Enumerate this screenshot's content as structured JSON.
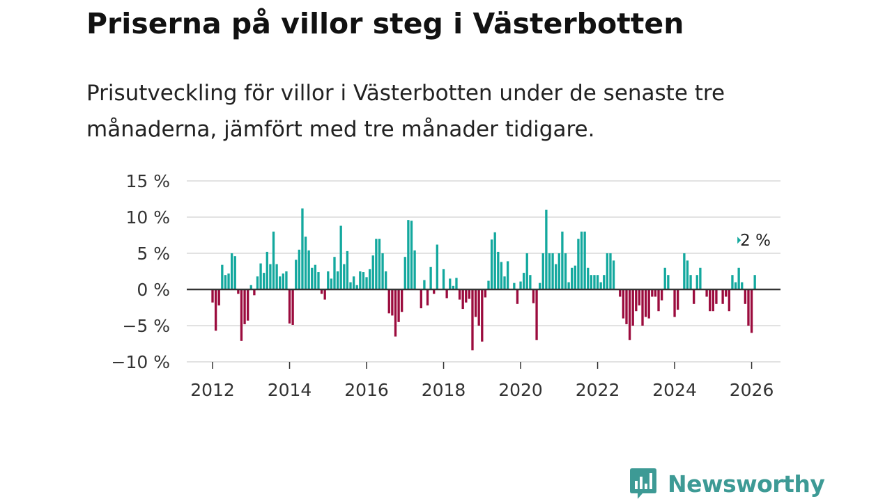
{
  "header": {
    "title": "Priserna på villor steg i Västerbotten",
    "subtitle": "Prisutveckling för villor i Västerbotten under de senaste tre månaderna, jämfört med tre månader tidigare."
  },
  "logo": {
    "text": "Newsworthy",
    "icon": "bar-chart-speech-bubble-icon",
    "color": "#3d9a95"
  },
  "chart_data": {
    "type": "bar",
    "title": "Priserna på villor steg i Västerbotten",
    "xlabel": "",
    "ylabel": "",
    "ylim": [
      -10,
      15
    ],
    "yticks": [
      15,
      10,
      5,
      0,
      -5,
      -10
    ],
    "ytick_labels": [
      "15 %",
      "10 %",
      "5 %",
      "0 %",
      "−5 %",
      "−10 %"
    ],
    "xlim": [
      2011.33,
      2026.75
    ],
    "xticks": [
      2012,
      2014,
      2016,
      2018,
      2020,
      2022,
      2024,
      2026
    ],
    "xtick_labels": [
      "2012",
      "2014",
      "2016",
      "2018",
      "2020",
      "2022",
      "2024",
      "2026"
    ],
    "start": "2012-01",
    "frequency": "monthly",
    "grid": true,
    "colors": {
      "positive": "#13a89e",
      "negative": "#9b0b3d"
    },
    "end_label": "2 %",
    "values": [
      -1.8,
      -5.7,
      -2.2,
      3.4,
      2.0,
      2.2,
      5.0,
      4.6,
      -0.6,
      -7.1,
      -4.8,
      -4.3,
      0.6,
      -0.8,
      1.8,
      3.6,
      2.3,
      5.2,
      3.5,
      8.0,
      3.5,
      1.8,
      2.2,
      2.5,
      -4.7,
      -4.9,
      4.1,
      5.5,
      11.2,
      7.3,
      5.4,
      3.0,
      3.4,
      2.4,
      -0.6,
      -1.4,
      2.5,
      1.5,
      4.5,
      2.5,
      8.8,
      3.5,
      5.3,
      1.0,
      1.8,
      0.6,
      2.5,
      2.4,
      1.7,
      2.8,
      4.7,
      7.0,
      7.0,
      5.0,
      2.5,
      -3.3,
      -3.6,
      -6.5,
      -4.5,
      -3.1,
      4.5,
      9.6,
      9.5,
      5.4,
      0.0,
      -2.6,
      1.3,
      -2.2,
      3.1,
      -0.6,
      6.2,
      0.0,
      2.8,
      -1.2,
      1.5,
      0.5,
      1.6,
      -1.4,
      -2.7,
      -1.8,
      -1.3,
      -8.4,
      -3.8,
      -5.0,
      -7.2,
      -1.1,
      1.2,
      6.9,
      7.9,
      5.2,
      3.8,
      1.8,
      3.9,
      0.0,
      0.9,
      -2.0,
      1.1,
      2.3,
      5.0,
      2.0,
      -1.9,
      -7.0,
      0.9,
      5.0,
      11.0,
      5.0,
      5.0,
      3.5,
      5.0,
      8.0,
      5.0,
      1.0,
      3.0,
      3.3,
      7.0,
      8.0,
      8.0,
      3.0,
      2.0,
      2.0,
      2.0,
      1.0,
      2.0,
      5.0,
      5.0,
      4.0,
      0.0,
      -1.0,
      -4.0,
      -4.8,
      -7.0,
      -5.0,
      -3.0,
      -2.2,
      -5.0,
      -3.8,
      -4.0,
      -1.0,
      -1.0,
      -3.0,
      -1.5,
      3.0,
      2.0,
      0.0,
      -3.8,
      -2.8,
      0.0,
      5.0,
      4.0,
      2.0,
      -2.0,
      2.0,
      3.0,
      0.0,
      -1.0,
      -3.0,
      -3.0,
      -2.0,
      0.0,
      -2.0,
      -1.0,
      -3.0,
      2.0,
      1.0,
      3.0,
      1.0,
      -2.0,
      -5.0,
      -6.0,
      2.0
    ]
  }
}
